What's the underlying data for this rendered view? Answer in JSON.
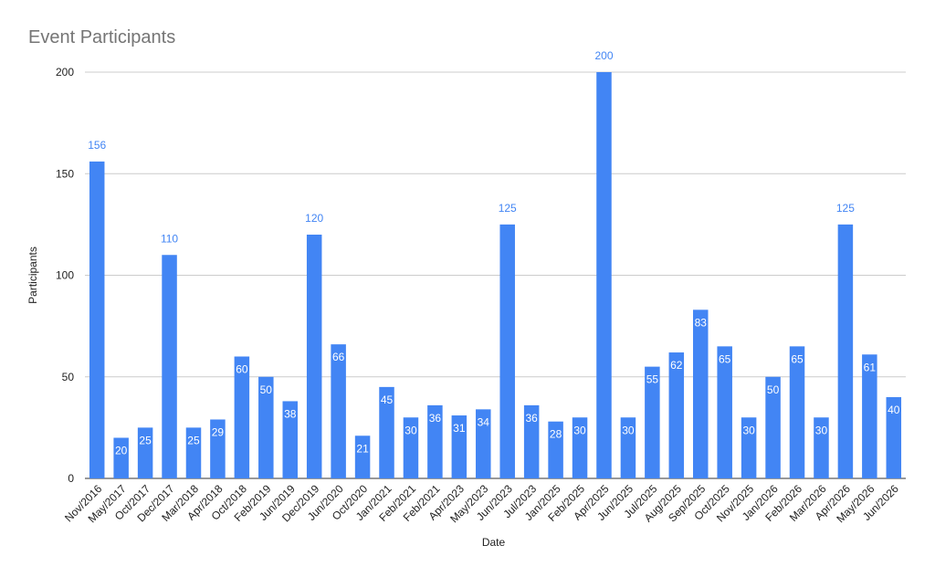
{
  "chart_data": {
    "type": "bar",
    "title": "Event Participants",
    "xlabel": "Date",
    "ylabel": "Participants",
    "ylim": [
      0,
      200
    ],
    "yticks": [
      0,
      50,
      100,
      150,
      200
    ],
    "grid": true,
    "legend": "none",
    "bar_color": "#4285f4",
    "label_inside_color": "#ffffff",
    "label_outside_color": "#4285f4",
    "categories": [
      "Nov/2016",
      "May/2017",
      "Oct/2017",
      "Dec/2017",
      "Mar/2018",
      "Apr/2018",
      "Oct/2018",
      "Feb/2019",
      "Jun/2019",
      "Dec/2019",
      "Jun/2020",
      "Oct/2020",
      "Jan/2021",
      "Feb/2021",
      "Feb/2021",
      "Apr/2023",
      "May/2023",
      "Jun/2023",
      "Jul/2023",
      "Jan/2025",
      "Feb/2025",
      "Apr/2025",
      "Jun/2025",
      "Jul/2025",
      "Aug/2025",
      "Sep/2025",
      "Oct/2025",
      "Nov/2025",
      "Jan/2026",
      "Feb/2026",
      "Mar/2026",
      "Apr/2026",
      "May/2026",
      "Jun/2026"
    ],
    "values": [
      156,
      20,
      25,
      110,
      25,
      29,
      60,
      50,
      38,
      120,
      66,
      21,
      45,
      30,
      36,
      31,
      34,
      125,
      36,
      28,
      30,
      200,
      30,
      55,
      62,
      83,
      65,
      30,
      50,
      65,
      30,
      125,
      61,
      40
    ]
  }
}
